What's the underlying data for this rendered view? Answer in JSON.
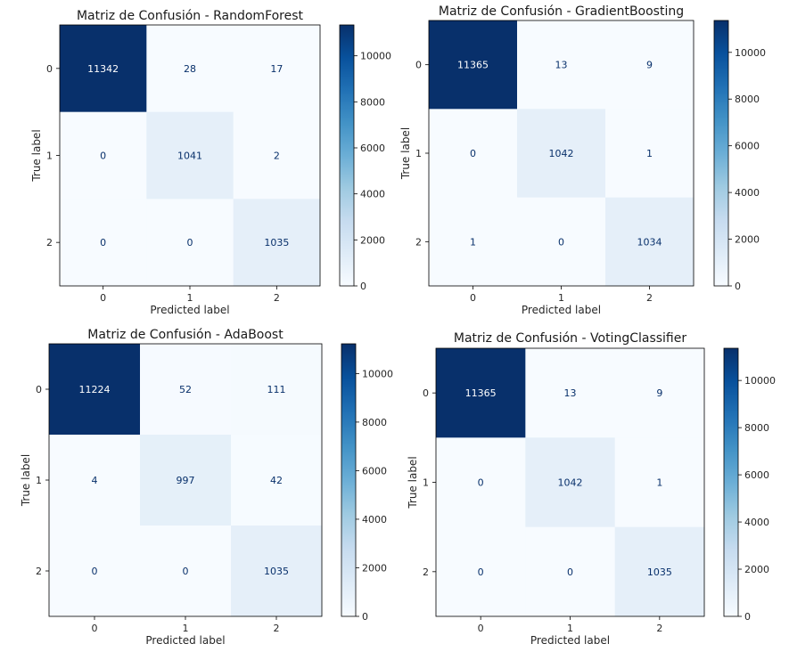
{
  "chart_data": [
    {
      "type": "heatmap",
      "title": "Matriz de Confusión - RandomForest",
      "xlabel": "Predicted label",
      "ylabel": "True label",
      "x_ticks": [
        "0",
        "1",
        "2"
      ],
      "y_ticks": [
        "0",
        "1",
        "2"
      ],
      "values": [
        [
          11342,
          28,
          17
        ],
        [
          0,
          1041,
          2
        ],
        [
          0,
          0,
          1035
        ]
      ],
      "colormap": "Blues",
      "colorbar_ticks": [
        "0",
        "2000",
        "4000",
        "6000",
        "8000",
        "10000"
      ]
    },
    {
      "type": "heatmap",
      "title": "Matriz de Confusión - GradientBoosting",
      "xlabel": "Predicted label",
      "ylabel": "True label",
      "x_ticks": [
        "0",
        "1",
        "2"
      ],
      "y_ticks": [
        "0",
        "1",
        "2"
      ],
      "values": [
        [
          11365,
          13,
          9
        ],
        [
          0,
          1042,
          1
        ],
        [
          1,
          0,
          1034
        ]
      ],
      "colormap": "Blues",
      "colorbar_ticks": [
        "0",
        "2000",
        "4000",
        "6000",
        "8000",
        "10000"
      ]
    },
    {
      "type": "heatmap",
      "title": "Matriz de Confusión - AdaBoost",
      "xlabel": "Predicted label",
      "ylabel": "True label",
      "x_ticks": [
        "0",
        "1",
        "2"
      ],
      "y_ticks": [
        "0",
        "1",
        "2"
      ],
      "values": [
        [
          11224,
          52,
          111
        ],
        [
          4,
          997,
          42
        ],
        [
          0,
          0,
          1035
        ]
      ],
      "colormap": "Blues",
      "colorbar_ticks": [
        "0",
        "2000",
        "4000",
        "6000",
        "8000",
        "10000"
      ]
    },
    {
      "type": "heatmap",
      "title": "Matriz de Confusión - VotingClassifier",
      "xlabel": "Predicted label",
      "ylabel": "True label",
      "x_ticks": [
        "0",
        "1",
        "2"
      ],
      "y_ticks": [
        "0",
        "1",
        "2"
      ],
      "values": [
        [
          11365,
          13,
          9
        ],
        [
          0,
          1042,
          1
        ],
        [
          0,
          0,
          1035
        ]
      ],
      "colormap": "Blues",
      "colorbar_ticks": [
        "0",
        "2000",
        "4000",
        "6000",
        "8000",
        "10000"
      ]
    }
  ]
}
